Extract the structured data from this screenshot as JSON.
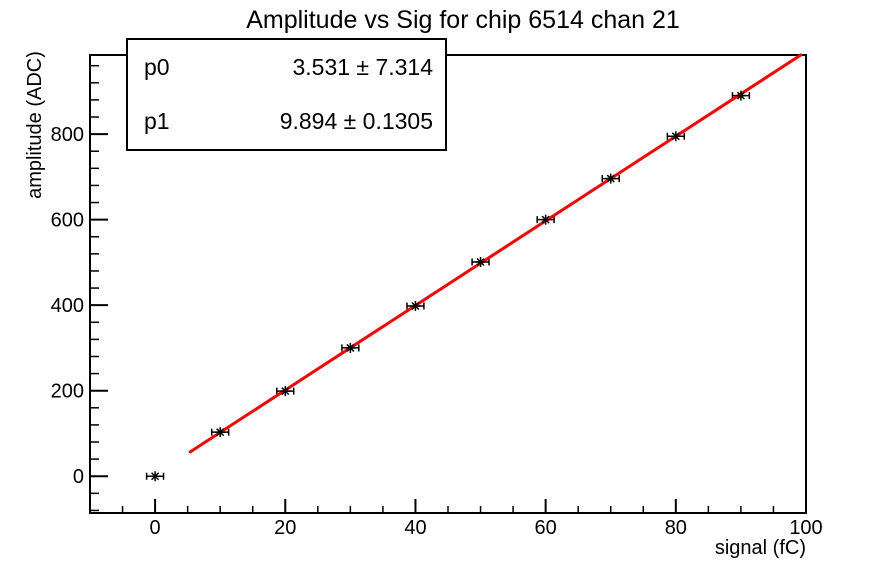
{
  "chart_data": {
    "type": "scatter",
    "title": "Amplitude vs Sig for chip 6514 chan 21",
    "xlabel": "signal (fC)",
    "ylabel": "amplitude (ADC)",
    "xlim": [
      -10,
      100
    ],
    "ylim": [
      -86,
      985
    ],
    "x_major_ticks": [
      0,
      20,
      40,
      60,
      80,
      100
    ],
    "x_minor_step": 5,
    "x_major_step": 20,
    "y_major_ticks": [
      0,
      200,
      400,
      600,
      800
    ],
    "y_minor_step": 40,
    "y_major_step": 200,
    "grid": false,
    "legend": "none",
    "points": {
      "x": [
        0,
        10,
        20,
        30,
        40,
        50,
        60,
        70,
        80,
        90
      ],
      "y": [
        0,
        103,
        199,
        300,
        398,
        501,
        600,
        696,
        795,
        890
      ],
      "x_error": 1.3,
      "marker": "star",
      "color": "#000000"
    },
    "fit": {
      "label": "linear",
      "p0": 3.531,
      "p1": 9.894,
      "x_start": 5.4,
      "x_end": 100,
      "color": "#ff0000"
    }
  },
  "stats_box": {
    "rows": [
      {
        "name": "p0",
        "value": "3.531 ± 7.314"
      },
      {
        "name": "p1",
        "value": "9.894 ± 0.1305"
      }
    ]
  },
  "colors": {
    "background": "#ffffff",
    "axis": "#000000",
    "fit_line": "#ff0000"
  }
}
